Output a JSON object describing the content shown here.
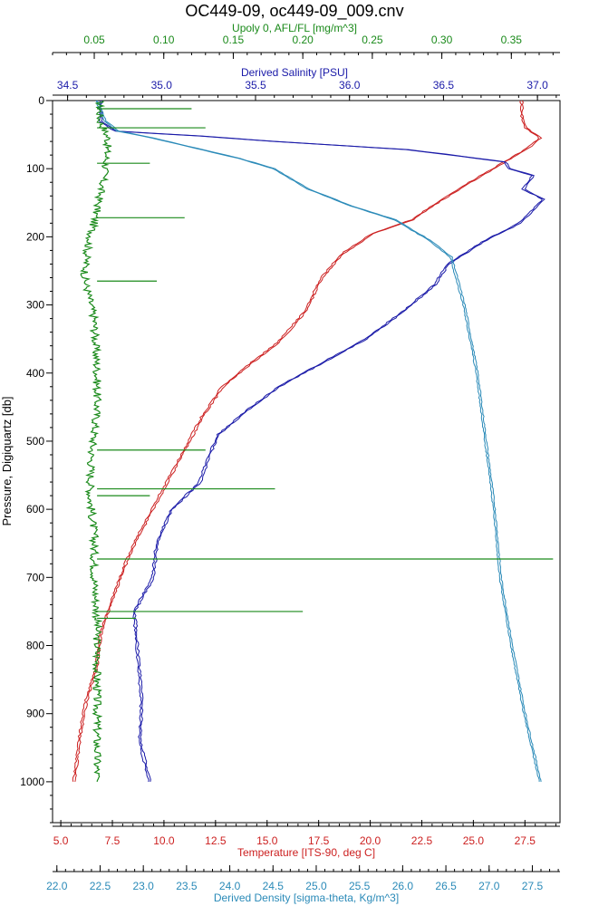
{
  "chart_data": {
    "type": "line",
    "title": "OC449-09, oc449-09_009.cnv",
    "y_axis": {
      "label": "Pressure, Digiquartz [db]",
      "range": [
        0,
        1060
      ],
      "inverted": true,
      "ticks": [
        "0",
        "100",
        "200",
        "300",
        "400",
        "500",
        "600",
        "700",
        "800",
        "900",
        "1000"
      ],
      "tick_values": [
        0,
        100,
        200,
        300,
        400,
        500,
        600,
        700,
        800,
        900,
        1000
      ]
    },
    "x_axes": [
      {
        "id": "fluor",
        "label": "Upoly 0, AFL/FL [mg/m^3]",
        "position": "top-outer",
        "color": "#1a8a1a",
        "range": [
          0.02,
          0.385
        ],
        "ticks": [
          "0.05",
          "0.10",
          "0.15",
          "0.20",
          "0.25",
          "0.30",
          "0.35"
        ],
        "tick_values": [
          0.05,
          0.1,
          0.15,
          0.2,
          0.25,
          0.3,
          0.35
        ]
      },
      {
        "id": "salinity",
        "label": "Derived Salinity [PSU]",
        "position": "top-inner",
        "color": "#1a1aa8",
        "range": [
          34.42,
          37.12
        ],
        "ticks": [
          "34.5",
          "35.0",
          "35.5",
          "36.0",
          "36.5",
          "37.0"
        ],
        "tick_values": [
          34.5,
          35.0,
          35.5,
          36.0,
          36.5,
          37.0
        ]
      },
      {
        "id": "temperature",
        "label": "Temperature [ITS-90, deg C]",
        "position": "bottom-inner",
        "color": "#cc2020",
        "range": [
          4.6,
          29.2
        ],
        "ticks": [
          "5.0",
          "7.5",
          "10.0",
          "12.5",
          "15.0",
          "17.5",
          "20.0",
          "22.5",
          "25.0",
          "27.5"
        ],
        "tick_values": [
          5.0,
          7.5,
          10.0,
          12.5,
          15.0,
          17.5,
          20.0,
          22.5,
          25.0,
          27.5
        ]
      },
      {
        "id": "density",
        "label": "Derived Density [sigma-theta, Kg/m^3]",
        "position": "bottom-outer",
        "color": "#2a8ab8",
        "range": [
          21.95,
          27.82
        ],
        "ticks": [
          "22.0",
          "22.5",
          "23.0",
          "23.5",
          "24.0",
          "24.5",
          "25.0",
          "25.5",
          "26.0",
          "26.5",
          "27.0",
          "27.5"
        ],
        "tick_values": [
          22.0,
          22.5,
          23.0,
          23.5,
          24.0,
          24.5,
          25.0,
          25.5,
          26.0,
          26.5,
          27.0,
          27.5
        ]
      }
    ],
    "series": [
      {
        "axis": "temperature",
        "color": "#cc2020",
        "points": [
          [
            27.3,
            0
          ],
          [
            27.3,
            20
          ],
          [
            27.5,
            40
          ],
          [
            28.2,
            55
          ],
          [
            27.6,
            70
          ],
          [
            26.2,
            95
          ],
          [
            24.8,
            120
          ],
          [
            23.2,
            150
          ],
          [
            22.0,
            175
          ],
          [
            20.1,
            195
          ],
          [
            18.6,
            225
          ],
          [
            17.6,
            260
          ],
          [
            16.8,
            310
          ],
          [
            15.5,
            355
          ],
          [
            14.0,
            390
          ],
          [
            12.8,
            420
          ],
          [
            11.8,
            465
          ],
          [
            11.0,
            510
          ],
          [
            10.2,
            555
          ],
          [
            9.4,
            600
          ],
          [
            8.7,
            640
          ],
          [
            8.1,
            680
          ],
          [
            7.6,
            720
          ],
          [
            6.9,
            780
          ],
          [
            6.7,
            830
          ],
          [
            6.2,
            880
          ],
          [
            5.9,
            930
          ],
          [
            5.6,
            1000
          ]
        ]
      },
      {
        "axis": "salinity",
        "color": "#1a1aa8",
        "points": [
          [
            34.67,
            0
          ],
          [
            34.67,
            30
          ],
          [
            34.75,
            45
          ],
          [
            35.2,
            52
          ],
          [
            35.6,
            60
          ],
          [
            36.3,
            72
          ],
          [
            36.6,
            82
          ],
          [
            36.82,
            90
          ],
          [
            36.85,
            100
          ],
          [
            36.97,
            110
          ],
          [
            36.92,
            130
          ],
          [
            37.03,
            145
          ],
          [
            36.9,
            180
          ],
          [
            36.72,
            205
          ],
          [
            36.52,
            240
          ],
          [
            36.45,
            270
          ],
          [
            36.28,
            310
          ],
          [
            36.08,
            350
          ],
          [
            35.85,
            385
          ],
          [
            35.62,
            420
          ],
          [
            35.45,
            455
          ],
          [
            35.3,
            490
          ],
          [
            35.25,
            520
          ],
          [
            35.2,
            560
          ],
          [
            35.05,
            600
          ],
          [
            34.97,
            650
          ],
          [
            34.95,
            700
          ],
          [
            34.85,
            750
          ],
          [
            34.87,
            820
          ],
          [
            34.89,
            880
          ],
          [
            34.88,
            940
          ],
          [
            34.93,
            1000
          ]
        ]
      },
      {
        "axis": "density",
        "color": "#2a8ab8",
        "points": [
          [
            22.45,
            0
          ],
          [
            22.55,
            30
          ],
          [
            22.7,
            45
          ],
          [
            23.1,
            55
          ],
          [
            23.6,
            70
          ],
          [
            24.1,
            85
          ],
          [
            24.5,
            100
          ],
          [
            24.9,
            130
          ],
          [
            25.4,
            155
          ],
          [
            25.9,
            175
          ],
          [
            26.3,
            205
          ],
          [
            26.55,
            230
          ],
          [
            26.7,
            300
          ],
          [
            26.85,
            400
          ],
          [
            26.95,
            500
          ],
          [
            27.05,
            600
          ],
          [
            27.12,
            700
          ],
          [
            27.25,
            800
          ],
          [
            27.4,
            900
          ],
          [
            27.58,
            1000
          ]
        ]
      },
      {
        "axis": "fluor",
        "color": "#1a8a1a",
        "baseline": [
          [
            0.054,
            0
          ],
          [
            0.054,
            30
          ],
          [
            0.06,
            55
          ],
          [
            0.058,
            100
          ],
          [
            0.052,
            160
          ],
          [
            0.045,
            220
          ],
          [
            0.043,
            260
          ],
          [
            0.05,
            320
          ],
          [
            0.052,
            400
          ],
          [
            0.052,
            455
          ],
          [
            0.048,
            520
          ],
          [
            0.047,
            580
          ],
          [
            0.05,
            640
          ],
          [
            0.05,
            700
          ],
          [
            0.052,
            760
          ],
          [
            0.052,
            850
          ],
          [
            0.052,
            1000
          ]
        ],
        "spikes": [
          [
            0.12,
            12
          ],
          [
            0.13,
            40
          ],
          [
            0.09,
            92
          ],
          [
            0.115,
            172
          ],
          [
            0.095,
            265
          ],
          [
            0.13,
            513
          ],
          [
            0.18,
            570
          ],
          [
            0.09,
            580
          ],
          [
            0.38,
            673
          ],
          [
            0.2,
            750
          ],
          [
            0.08,
            760
          ]
        ]
      }
    ]
  }
}
